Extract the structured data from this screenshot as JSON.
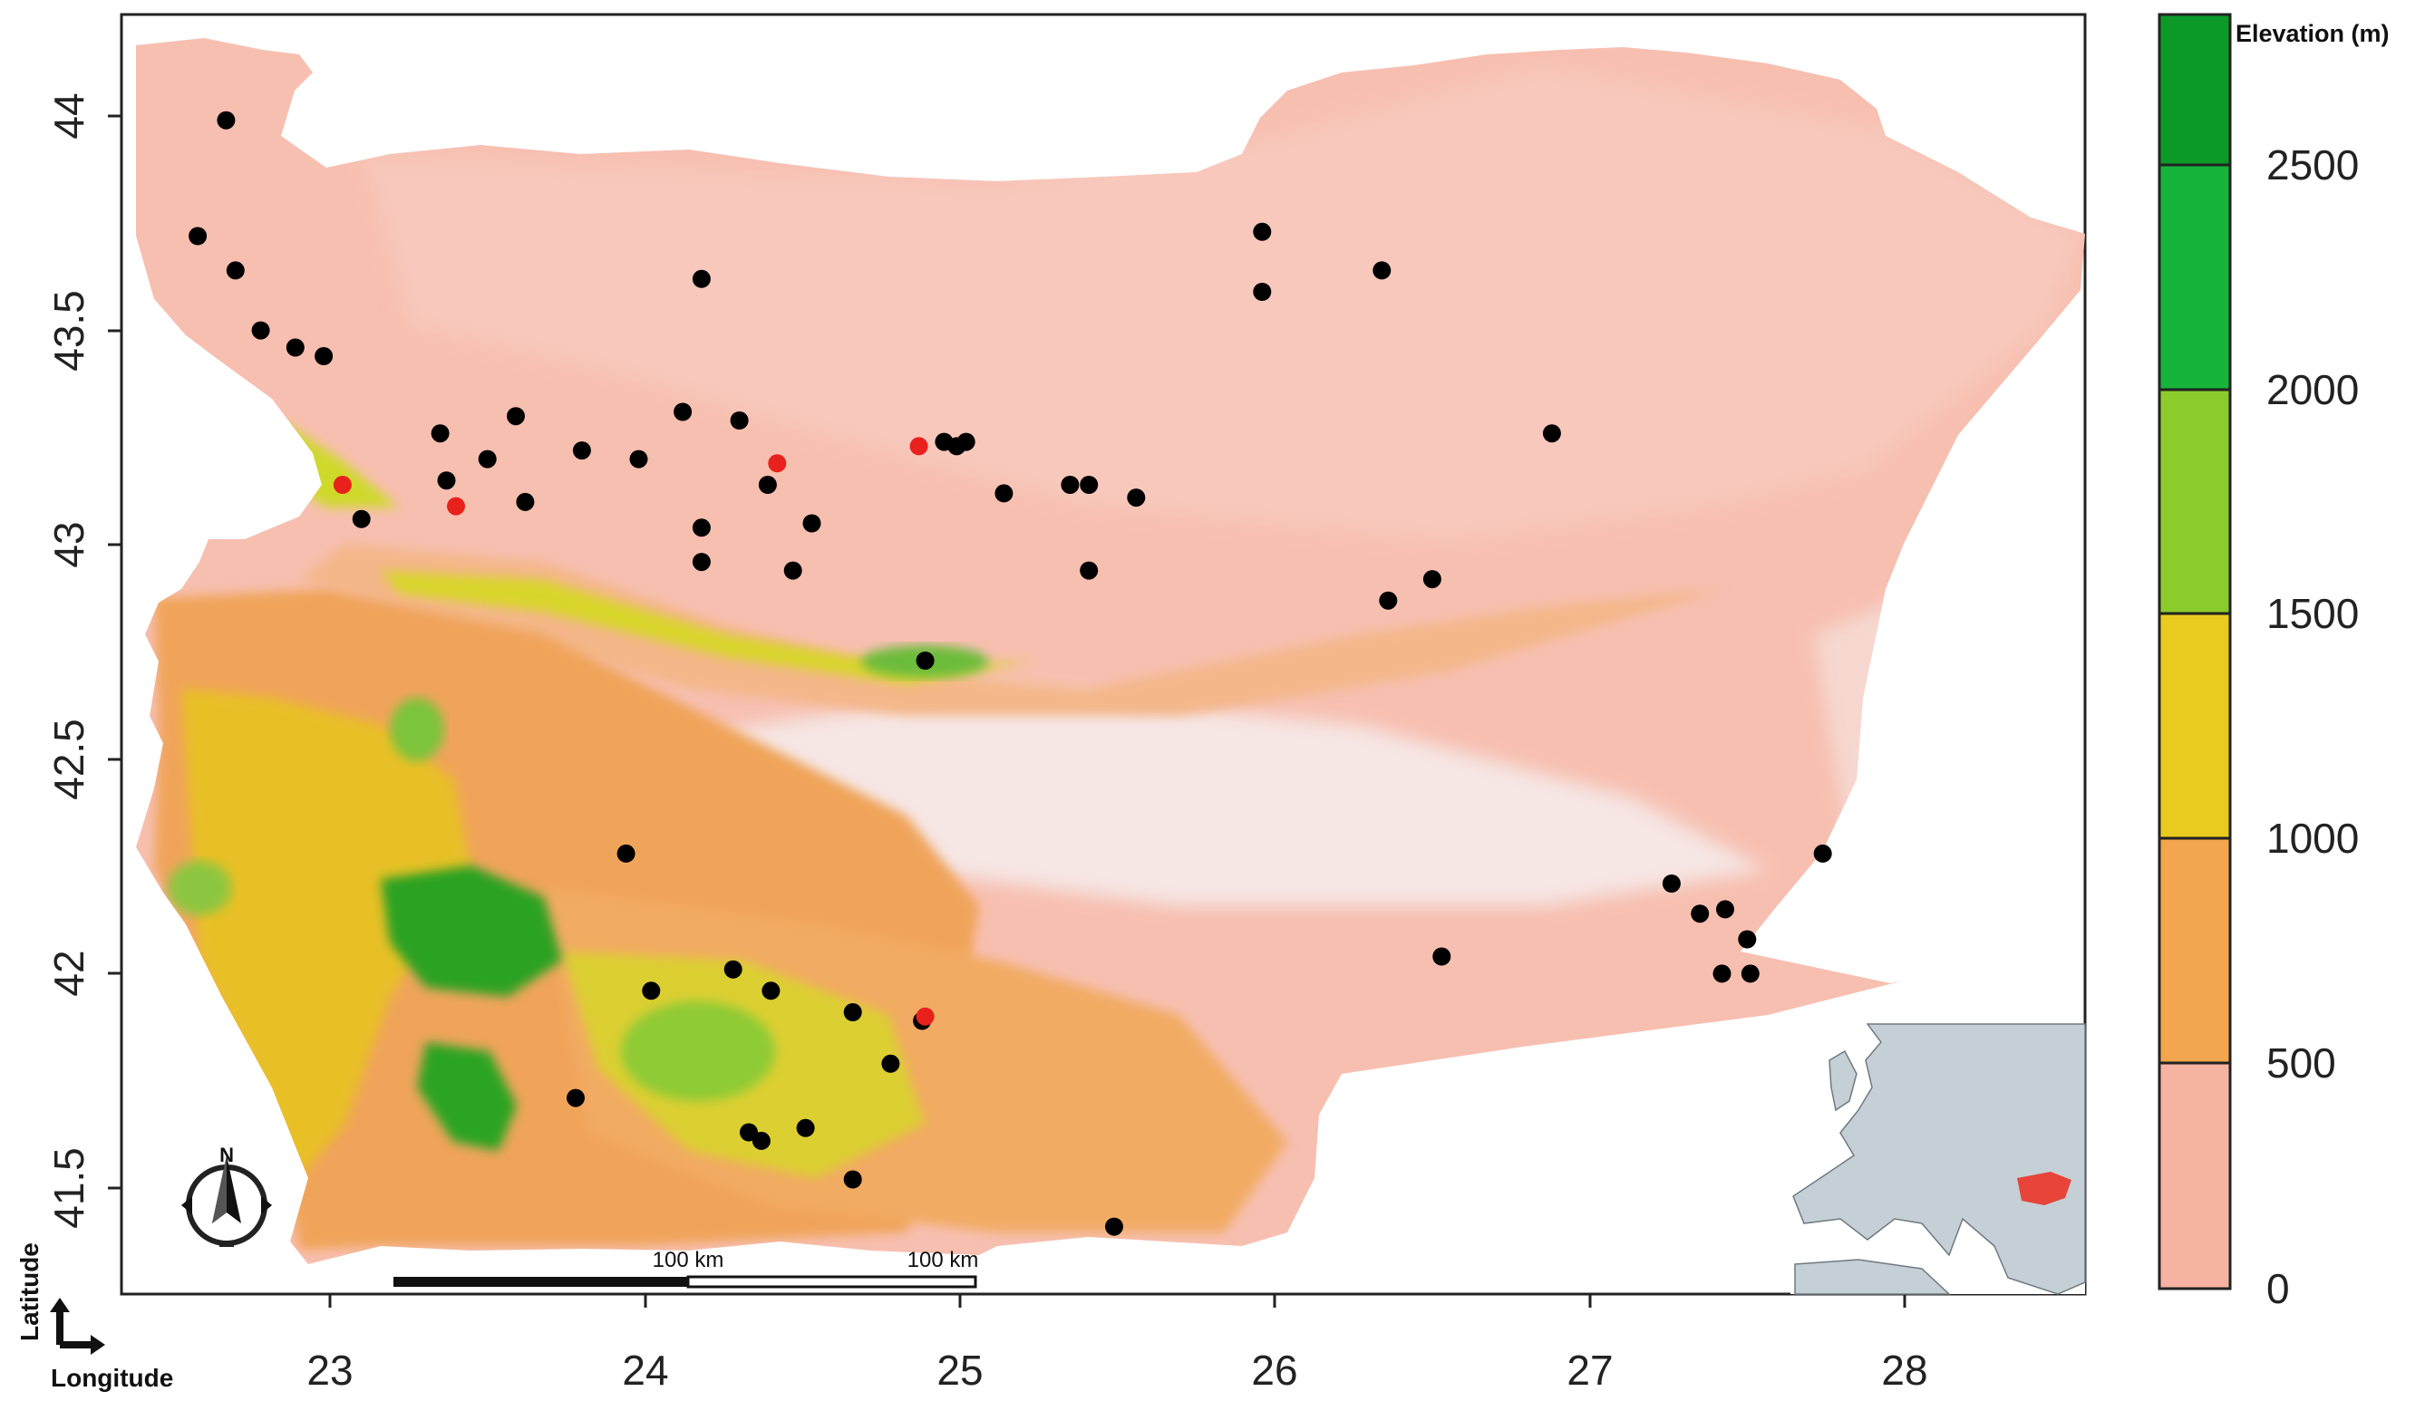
{
  "map": {
    "country": "Bulgaria",
    "axes": {
      "xlabel": "Longitude",
      "ylabel": "Latitude",
      "xticks": [
        "23",
        "24",
        "25",
        "26",
        "27",
        "28"
      ],
      "yticks": [
        "44",
        "43.5",
        "43",
        "42.5",
        "42",
        "41.5"
      ]
    },
    "scale_bar": {
      "label1": "100 km",
      "label2": "100 km"
    },
    "north_arrow": {
      "label": "N",
      "icon": "north-arrow-icon"
    },
    "legend": {
      "title": "Elevation (m)",
      "ticks": [
        "2500",
        "2000",
        "1500",
        "1000",
        "500",
        "0"
      ],
      "colors": {
        "high": "#0a9a1e",
        "mid_high": "#cfe01a",
        "mid": "#f0b43c",
        "low": "#f6a98e",
        "zero": "#f3f0f0"
      }
    },
    "inset": {
      "name": "Europe locator",
      "highlight_color": "#e8443a",
      "land_color": "#c5d0d6"
    },
    "points": {
      "black": [
        [
          22.67,
          43.99
        ],
        [
          22.58,
          43.72
        ],
        [
          22.7,
          43.64
        ],
        [
          22.78,
          43.5
        ],
        [
          22.89,
          43.46
        ],
        [
          22.98,
          43.44
        ],
        [
          23.35,
          43.26
        ],
        [
          23.5,
          43.2
        ],
        [
          23.59,
          43.3
        ],
        [
          23.37,
          43.15
        ],
        [
          23.1,
          43.06
        ],
        [
          23.62,
          43.1
        ],
        [
          23.8,
          43.22
        ],
        [
          23.98,
          43.2
        ],
        [
          24.18,
          43.62
        ],
        [
          24.12,
          43.31
        ],
        [
          24.3,
          43.29
        ],
        [
          24.39,
          43.14
        ],
        [
          24.18,
          43.04
        ],
        [
          24.18,
          42.96
        ],
        [
          24.47,
          42.94
        ],
        [
          24.53,
          43.05
        ],
        [
          24.95,
          43.24
        ],
        [
          24.99,
          43.23
        ],
        [
          25.02,
          43.24
        ],
        [
          25.14,
          43.12
        ],
        [
          25.35,
          43.14
        ],
        [
          25.41,
          43.14
        ],
        [
          25.56,
          43.11
        ],
        [
          25.41,
          42.94
        ],
        [
          24.89,
          42.73
        ],
        [
          25.96,
          43.73
        ],
        [
          25.96,
          43.59
        ],
        [
          26.34,
          43.64
        ],
        [
          26.88,
          43.26
        ],
        [
          26.36,
          42.87
        ],
        [
          26.5,
          42.92
        ],
        [
          23.94,
          42.28
        ],
        [
          24.02,
          41.96
        ],
        [
          24.28,
          42.01
        ],
        [
          24.4,
          41.96
        ],
        [
          24.66,
          41.91
        ],
        [
          24.88,
          41.89
        ],
        [
          24.78,
          41.79
        ],
        [
          23.78,
          41.71
        ],
        [
          24.33,
          41.63
        ],
        [
          24.37,
          41.61
        ],
        [
          24.51,
          41.64
        ],
        [
          24.66,
          41.52
        ],
        [
          25.49,
          41.41
        ],
        [
          26.53,
          42.04
        ],
        [
          27.26,
          42.21
        ],
        [
          27.35,
          42.14
        ],
        [
          27.43,
          42.15
        ],
        [
          27.5,
          42.08
        ],
        [
          27.42,
          42.0
        ],
        [
          27.51,
          42.0
        ],
        [
          27.74,
          42.28
        ]
      ],
      "red": [
        [
          23.04,
          43.14
        ],
        [
          23.4,
          43.09
        ],
        [
          24.42,
          43.19
        ],
        [
          24.87,
          43.23
        ],
        [
          24.89,
          41.9
        ]
      ]
    }
  }
}
